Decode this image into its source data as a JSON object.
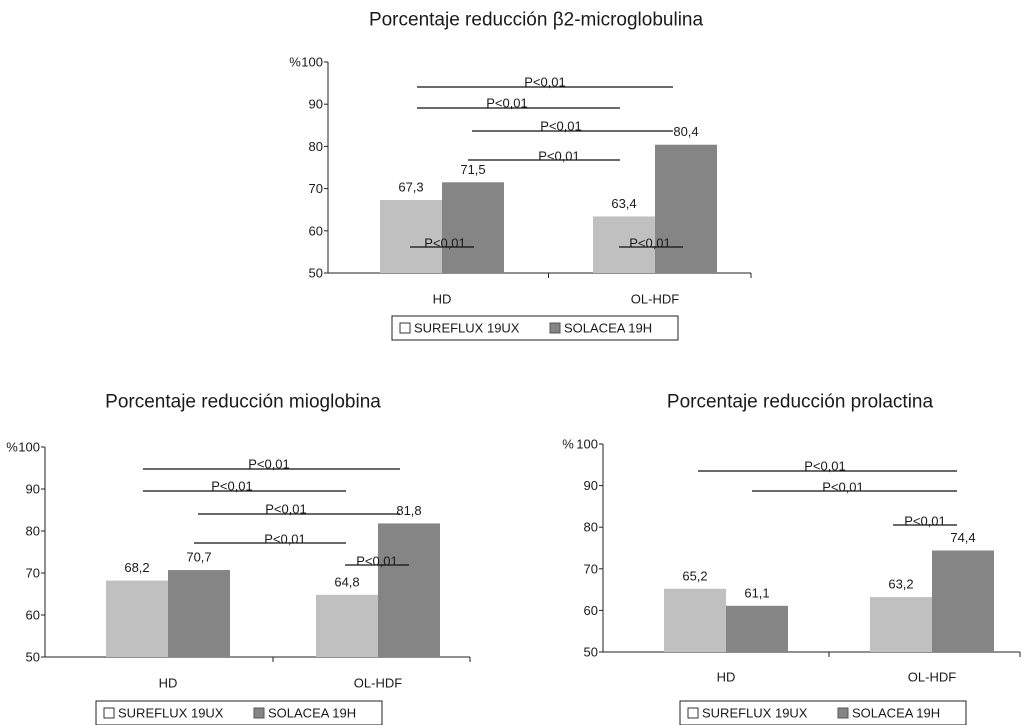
{
  "chart_data": [
    {
      "type": "bar",
      "title": "Porcentaje reducción β2-microglobulina",
      "ylabel": "%",
      "ylim": [
        50,
        100
      ],
      "yticks": [
        50,
        60,
        70,
        80,
        90,
        100
      ],
      "categories": [
        "HD",
        "OL-HDF"
      ],
      "series": [
        {
          "name": "SUREFLUX 19UX",
          "color": "#c0c0c0",
          "values": [
            67.3,
            63.4
          ],
          "labels": [
            "67,3",
            "63,4"
          ]
        },
        {
          "name": "SOLACEA 19H",
          "color": "#858585",
          "values": [
            71.5,
            80.4
          ],
          "labels": [
            "71,5",
            "80,4"
          ]
        }
      ],
      "significance": [
        {
          "label": "P<0,01",
          "from": [
            0,
            0
          ],
          "to": [
            1,
            1
          ]
        },
        {
          "label": "P<0,01",
          "from": [
            0,
            0
          ],
          "to": [
            1,
            0
          ]
        },
        {
          "label": "P<0,01",
          "from": [
            0,
            1
          ],
          "to": [
            1,
            1
          ]
        },
        {
          "label": "P<0,01",
          "from": [
            0,
            1
          ],
          "to": [
            1,
            0
          ]
        },
        {
          "label": "P<0,01",
          "from": [
            0,
            0
          ],
          "to": [
            0,
            1
          ]
        },
        {
          "label": "P<0,01",
          "from": [
            1,
            0
          ],
          "to": [
            1,
            1
          ]
        }
      ]
    },
    {
      "type": "bar",
      "title": "Porcentaje reducción mioglobina",
      "ylabel": "%",
      "ylim": [
        50,
        100
      ],
      "yticks": [
        50,
        60,
        70,
        80,
        90,
        100
      ],
      "categories": [
        "HD",
        "OL-HDF"
      ],
      "series": [
        {
          "name": "SUREFLUX 19UX",
          "color": "#c0c0c0",
          "values": [
            68.2,
            64.8
          ],
          "labels": [
            "68,2",
            "64,8"
          ]
        },
        {
          "name": "SOLACEA 19H",
          "color": "#858585",
          "values": [
            70.7,
            81.8
          ],
          "labels": [
            "70,7",
            "81,8"
          ]
        }
      ],
      "significance": [
        {
          "label": "P<0,01",
          "from": [
            0,
            0
          ],
          "to": [
            1,
            1
          ]
        },
        {
          "label": "P<0,01",
          "from": [
            0,
            0
          ],
          "to": [
            1,
            0
          ]
        },
        {
          "label": "P<0,01",
          "from": [
            0,
            1
          ],
          "to": [
            1,
            1
          ]
        },
        {
          "label": "P<0,01",
          "from": [
            0,
            1
          ],
          "to": [
            1,
            0
          ]
        },
        {
          "label": "P<0,01",
          "from": [
            1,
            0
          ],
          "to": [
            1,
            1
          ]
        }
      ]
    },
    {
      "type": "bar",
      "title": "Porcentaje reducción prolactina",
      "ylabel": "%",
      "ylim": [
        50,
        100
      ],
      "yticks": [
        50,
        60,
        70,
        80,
        90,
        100
      ],
      "categories": [
        "HD",
        "OL-HDF"
      ],
      "series": [
        {
          "name": "SUREFLUX 19UX",
          "color": "#c0c0c0",
          "values": [
            65.2,
            63.2
          ],
          "labels": [
            "65,2",
            "63,2"
          ]
        },
        {
          "name": "SOLACEA 19H",
          "color": "#858585",
          "values": [
            61.1,
            74.4
          ],
          "labels": [
            "61,1",
            "74,4"
          ]
        }
      ],
      "significance": [
        {
          "label": "P<0,01",
          "from": [
            0,
            0
          ],
          "to": [
            1,
            1
          ]
        },
        {
          "label": "P<0,01",
          "from": [
            0,
            1
          ],
          "to": [
            1,
            1
          ]
        },
        {
          "label": "P<0,01",
          "from": [
            1,
            0
          ],
          "to": [
            1,
            1
          ]
        }
      ]
    }
  ]
}
